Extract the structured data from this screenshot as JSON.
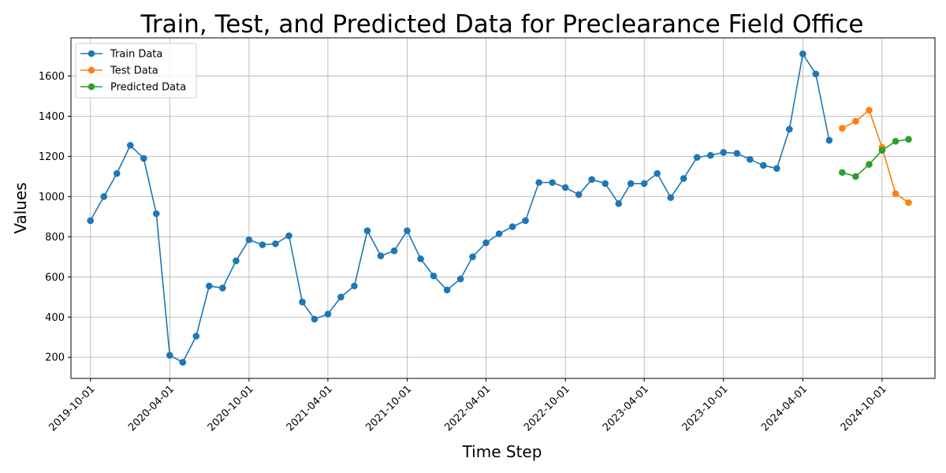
{
  "chart_data": {
    "type": "line",
    "title": "Train, Test, and Predicted Data for Preclearance Field Office",
    "xlabel": "Time Step",
    "ylabel": "Values",
    "x_tick_labels": [
      "2019-10-01",
      "2020-04-01",
      "2020-10-01",
      "2021-04-01",
      "2021-10-01",
      "2022-04-01",
      "2022-10-01",
      "2023-04-01",
      "2023-10-01",
      "2024-04-01",
      "2024-10-01"
    ],
    "y_ticks": [
      200,
      400,
      600,
      800,
      1000,
      1200,
      1400,
      1600
    ],
    "xlim": [
      "2019-08-17",
      "2025-01-31"
    ],
    "ylim": [
      95,
      1790
    ],
    "grid": true,
    "legend_position": "upper-left",
    "series": [
      {
        "name": "Train Data",
        "color": "#1f77b4",
        "x": [
          "2019-10-01",
          "2019-11-01",
          "2019-12-01",
          "2020-01-01",
          "2020-02-01",
          "2020-03-01",
          "2020-04-01",
          "2020-05-01",
          "2020-06-01",
          "2020-07-01",
          "2020-08-01",
          "2020-09-01",
          "2020-10-01",
          "2020-11-01",
          "2020-12-01",
          "2021-01-01",
          "2021-02-01",
          "2021-03-01",
          "2021-04-01",
          "2021-05-01",
          "2021-06-01",
          "2021-07-01",
          "2021-08-01",
          "2021-09-01",
          "2021-10-01",
          "2021-11-01",
          "2021-12-01",
          "2022-01-01",
          "2022-02-01",
          "2022-03-01",
          "2022-04-01",
          "2022-05-01",
          "2022-06-01",
          "2022-07-01",
          "2022-08-01",
          "2022-09-01",
          "2022-10-01",
          "2022-11-01",
          "2022-12-01",
          "2023-01-01",
          "2023-02-01",
          "2023-03-01",
          "2023-04-01",
          "2023-05-01",
          "2023-06-01",
          "2023-07-01",
          "2023-08-01",
          "2023-09-01",
          "2023-10-01",
          "2023-11-01",
          "2023-12-01",
          "2024-01-01",
          "2024-02-01",
          "2024-03-01",
          "2024-04-01",
          "2024-05-01",
          "2024-06-01"
        ],
        "values": [
          880,
          1000,
          1115,
          1255,
          1190,
          915,
          210,
          175,
          305,
          555,
          545,
          680,
          785,
          760,
          765,
          805,
          475,
          390,
          415,
          500,
          555,
          830,
          705,
          730,
          830,
          690,
          605,
          535,
          590,
          700,
          770,
          815,
          850,
          880,
          1070,
          1070,
          1045,
          1010,
          1085,
          1065,
          965,
          1065,
          1065,
          1115,
          995,
          1090,
          1195,
          1205,
          1220,
          1215,
          1185,
          1155,
          1140,
          1335,
          1710,
          1610,
          1280
        ]
      },
      {
        "name": "Test Data",
        "color": "#ff7f0e",
        "x": [
          "2024-07-01",
          "2024-08-01",
          "2024-09-01",
          "2024-10-01",
          "2024-11-01",
          "2024-12-01"
        ],
        "values": [
          1340,
          1375,
          1430,
          1245,
          1015,
          970
        ]
      },
      {
        "name": "Predicted Data",
        "color": "#2ca02c",
        "x": [
          "2024-07-01",
          "2024-08-01",
          "2024-09-01",
          "2024-10-01",
          "2024-11-01",
          "2024-12-01"
        ],
        "values": [
          1120,
          1100,
          1160,
          1230,
          1275,
          1285
        ]
      }
    ]
  }
}
